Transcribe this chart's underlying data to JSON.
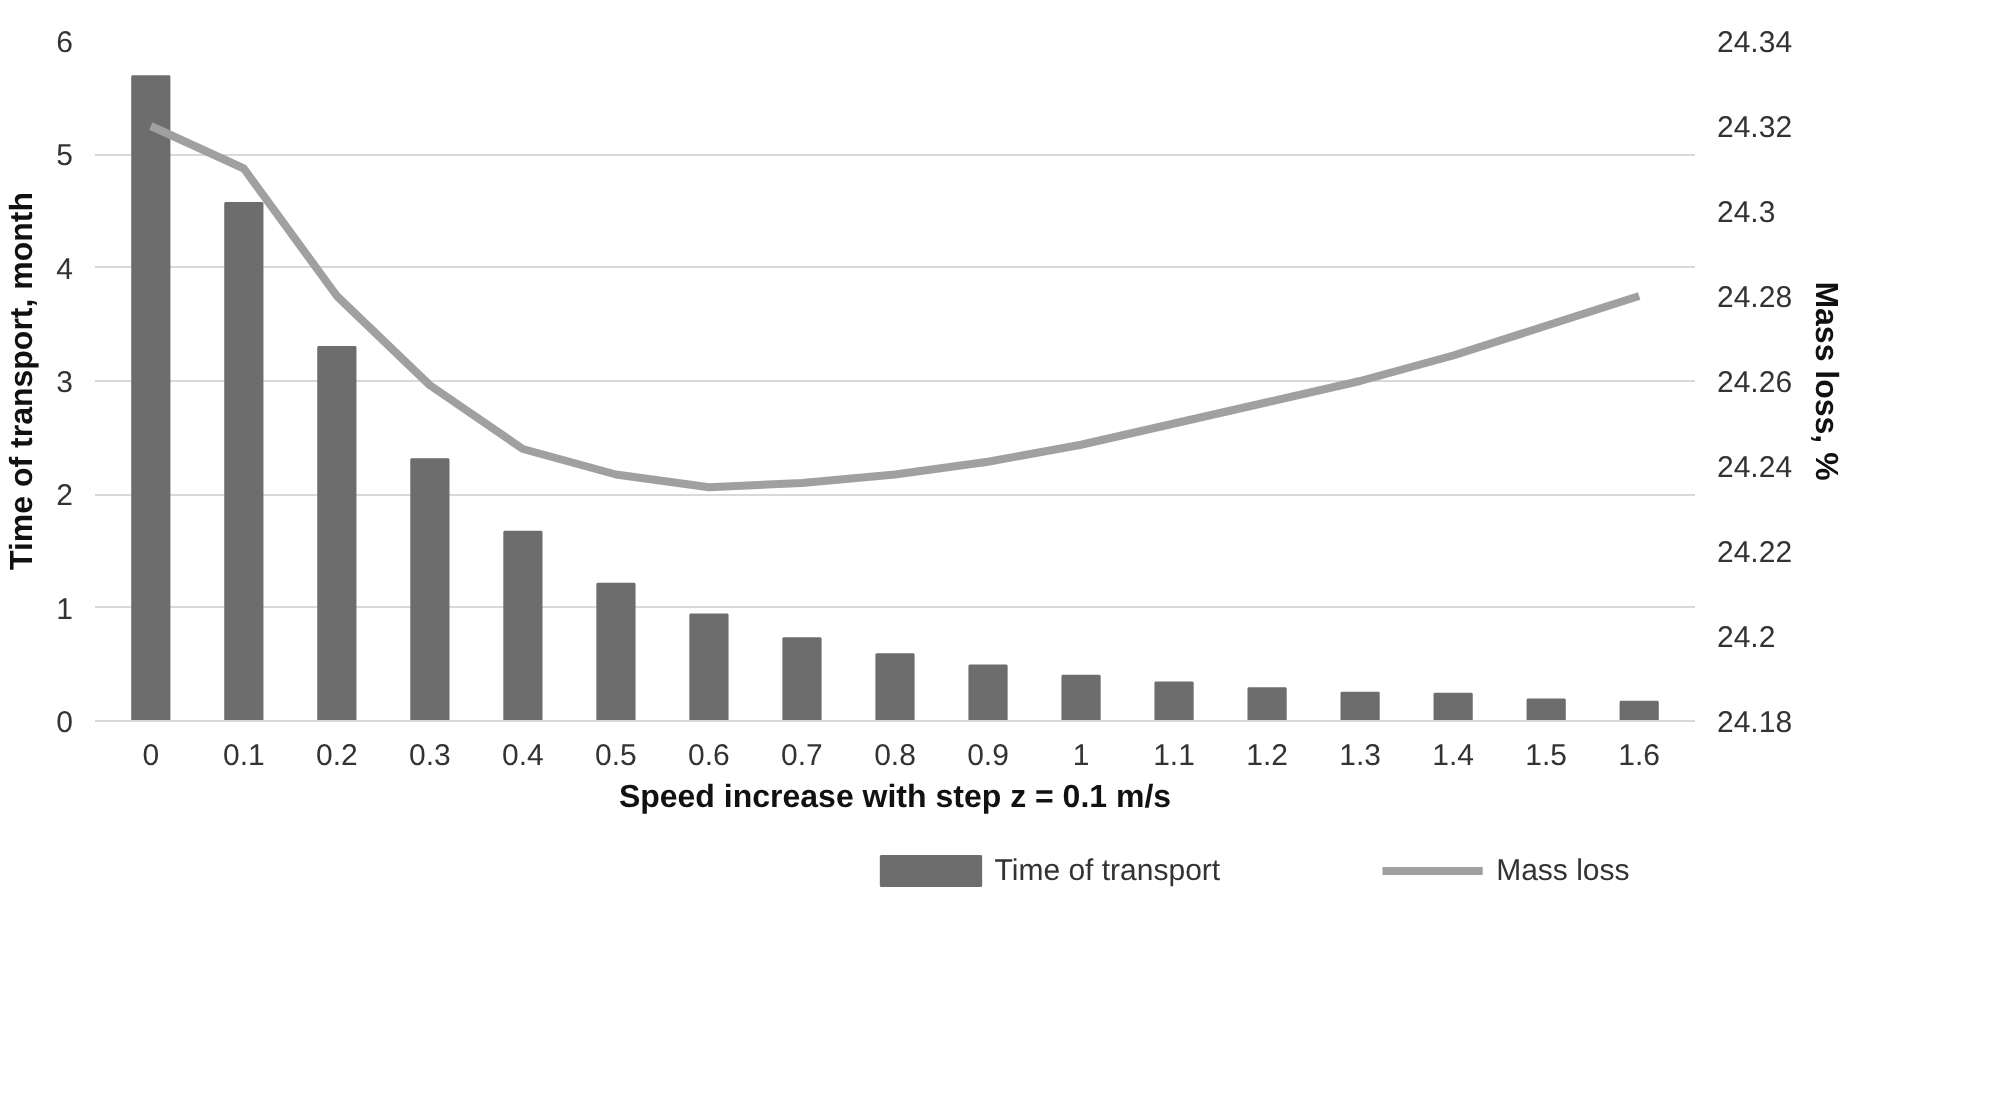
{
  "chart_data": {
    "type": "bar",
    "xlabel": "Speed increase with step z = 0.1 m/s",
    "ylabel": "Time of transport, month",
    "y2label": "Mass loss, %",
    "categories": [
      "0",
      "0.1",
      "0.2",
      "0.3",
      "0.4",
      "0.5",
      "0.6",
      "0.7",
      "0.8",
      "0.9",
      "1",
      "1.1",
      "1.2",
      "1.3",
      "1.4",
      "1.5",
      "1.6"
    ],
    "series": [
      {
        "name": "Time of transport",
        "color": "#6d6d6d",
        "values": [
          5.69,
          4.57,
          3.3,
          2.31,
          1.67,
          1.21,
          0.94,
          0.73,
          0.59,
          0.49,
          0.4,
          0.34,
          0.29,
          0.25,
          0.24,
          0.19,
          0.17
        ]
      },
      {
        "name": "Mass loss",
        "type": "line",
        "axis": "y2",
        "color": "#a0a0a0",
        "values": [
          24.32,
          24.31,
          24.28,
          24.259,
          24.244,
          24.238,
          24.235,
          24.236,
          24.238,
          24.241,
          24.245,
          24.25,
          24.255,
          24.26,
          24.266,
          24.273,
          24.28
        ]
      }
    ],
    "ylim": [
      0,
      6
    ],
    "yticks": [
      0,
      1,
      2,
      3,
      4,
      5,
      6
    ],
    "y2lim": [
      24.18,
      24.34
    ],
    "y2ticks": [
      24.18,
      24.2,
      24.22,
      24.24,
      24.26,
      24.28,
      24.3,
      24.32,
      24.34
    ],
    "grid": "y",
    "legend": "bottom right"
  }
}
